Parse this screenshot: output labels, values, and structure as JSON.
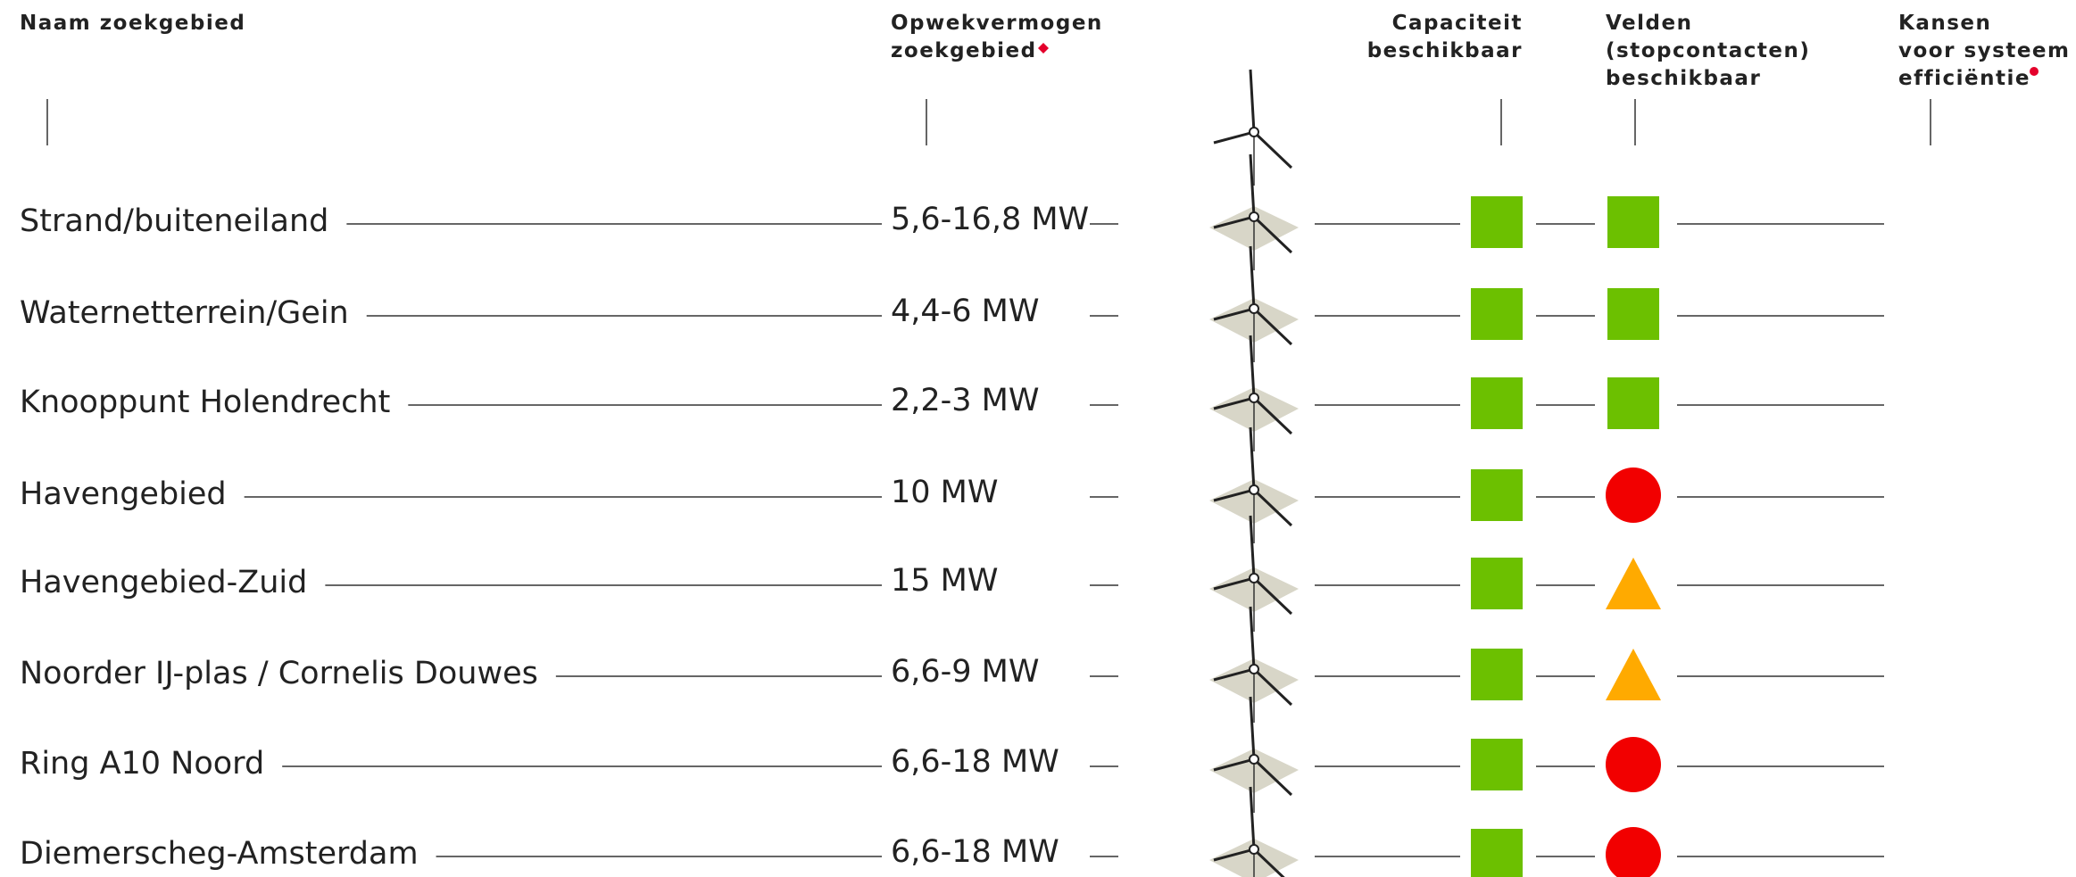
{
  "header": {
    "columns": [
      {
        "lines": [
          "Naam zoekgebied"
        ]
      },
      {
        "lines": [
          "Opwekvermogen",
          "zoekgebied"
        ]
      },
      {
        "lines": [
          "Capaciteit",
          "beschikbaar"
        ]
      },
      {
        "lines": [
          "Velden",
          "(stopcontacten)",
          "beschikbaar"
        ]
      },
      {
        "lines": [
          "Kansen",
          "voor systeem",
          "efficiëntie"
        ]
      }
    ]
  },
  "table": {
    "rows": [
      {
        "name": "Strand/buiteneiland",
        "power": "5,6-16,8 MW",
        "capacity": {
          "shape": "square",
          "color": "#6cc000"
        },
        "fields": {
          "shape": "square",
          "color": "#6cc000"
        }
      },
      {
        "name": "Waternetterrein/Gein",
        "power": "4,4-6 MW",
        "capacity": {
          "shape": "square",
          "color": "#6cc000"
        },
        "fields": {
          "shape": "square",
          "color": "#6cc000"
        }
      },
      {
        "name": "Knooppunt Holendrecht",
        "power": "2,2-3 MW",
        "capacity": {
          "shape": "square",
          "color": "#6cc000"
        },
        "fields": {
          "shape": "square",
          "color": "#6cc000"
        }
      },
      {
        "name": "Havengebied",
        "power": "10 MW",
        "capacity": {
          "shape": "square",
          "color": "#6cc000"
        },
        "fields": {
          "shape": "circle",
          "color": "#f20000"
        }
      },
      {
        "name": "Havengebied-Zuid",
        "power": "15 MW",
        "capacity": {
          "shape": "square",
          "color": "#6cc000"
        },
        "fields": {
          "shape": "triangle",
          "color": "#ffaa00"
        }
      },
      {
        "name": "Noorder IJ-plas / Cornelis Douwes",
        "power": "6,6-9 MW",
        "capacity": {
          "shape": "square",
          "color": "#6cc000"
        },
        "fields": {
          "shape": "triangle",
          "color": "#ffaa00"
        }
      },
      {
        "name": "Ring A10 Noord",
        "power": "6,6-18 MW",
        "capacity": {
          "shape": "square",
          "color": "#6cc000"
        },
        "fields": {
          "shape": "circle",
          "color": "#f20000"
        }
      },
      {
        "name": "Diemerscheg-Amsterdam",
        "power": "6,6-18 MW",
        "capacity": {
          "shape": "square",
          "color": "#6cc000"
        },
        "fields": {
          "shape": "circle",
          "color": "#f20000"
        }
      }
    ]
  }
}
